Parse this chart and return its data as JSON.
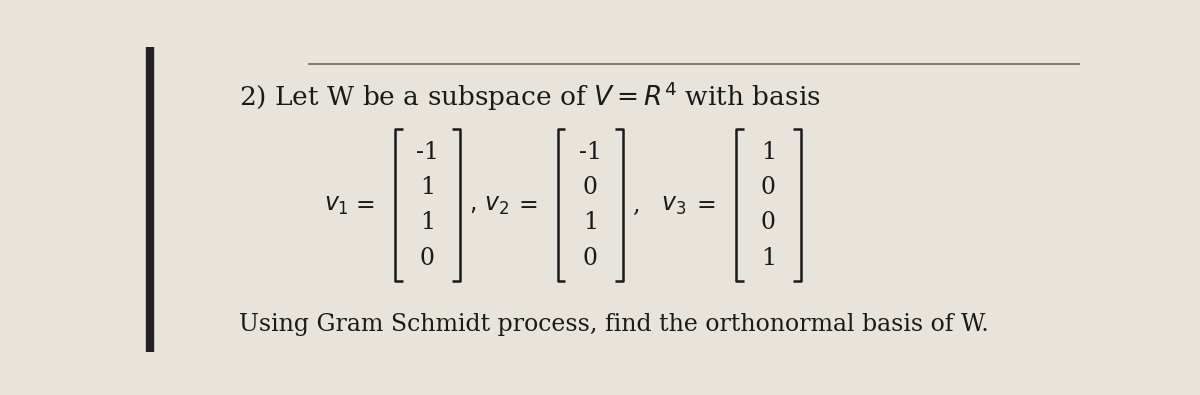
{
  "v1": [
    "-1",
    "1",
    "1",
    "0"
  ],
  "v2": [
    "-1",
    "0",
    "1",
    "0"
  ],
  "v3": [
    "1",
    "0",
    "0",
    "1"
  ],
  "bottom_line": "Using Gram Schmidt process, find the orthonormal basis of W.",
  "bg_color": "#e8e4dc",
  "text_color": "#1a1a1a",
  "title_fontsize": 19,
  "body_fontsize": 17,
  "matrix_fontsize": 17,
  "line_color": "#666666"
}
